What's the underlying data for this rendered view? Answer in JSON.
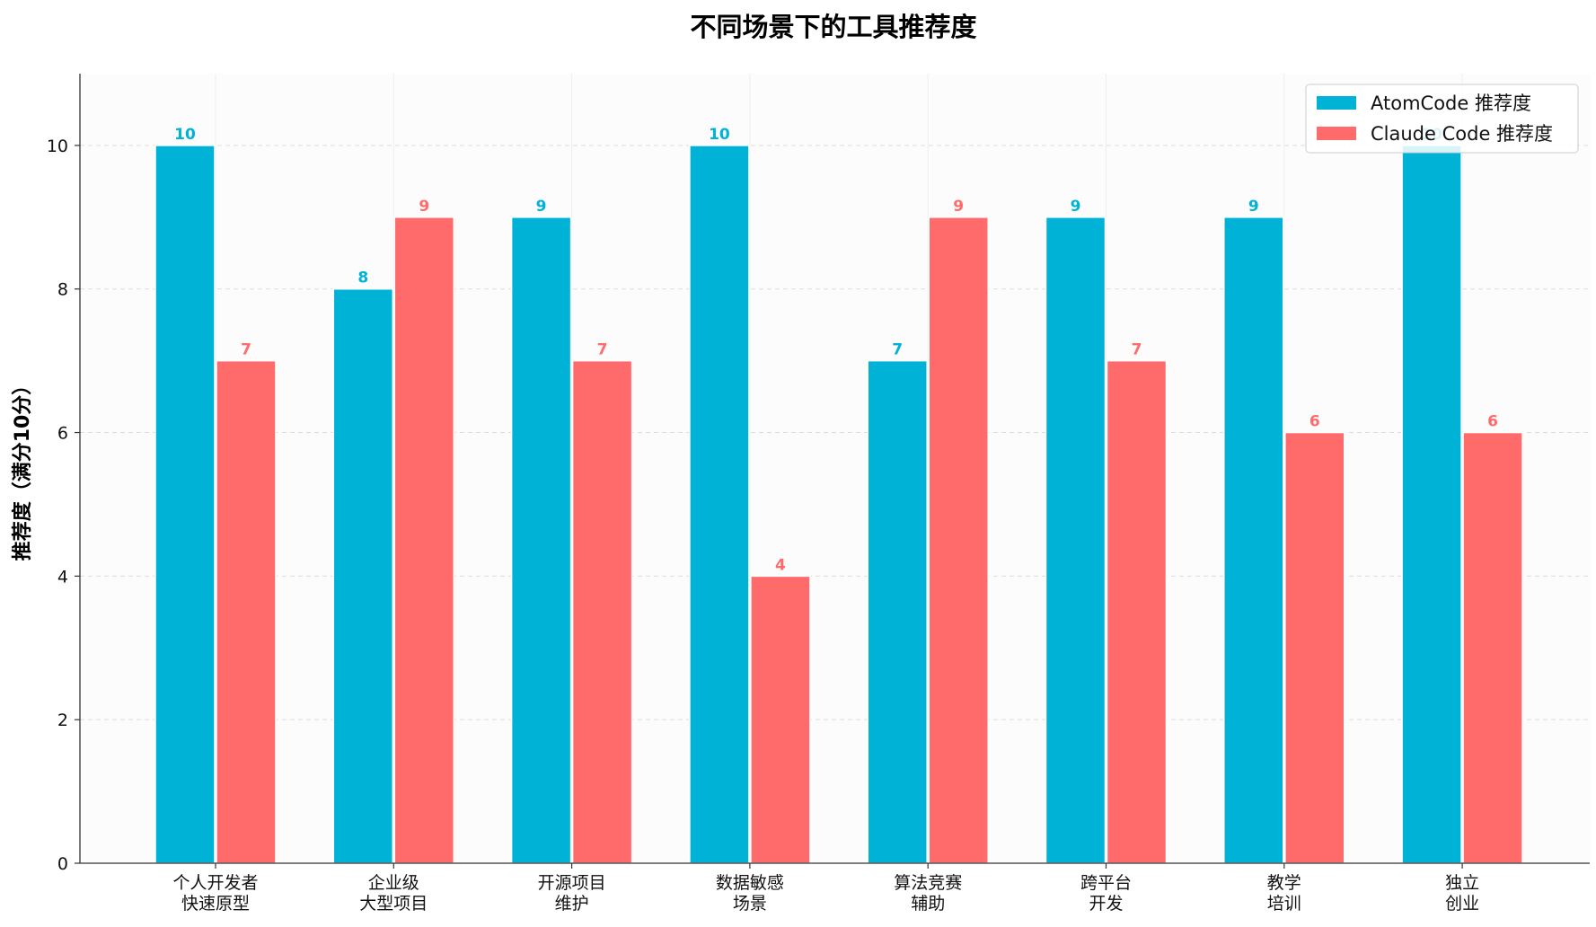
{
  "chart_data": {
    "type": "bar",
    "title": "不同场景下的工具推荐度",
    "xlabel": "",
    "ylabel": "推荐度（满分10分）",
    "categories": [
      [
        "个人开发者",
        "快速原型"
      ],
      [
        "企业级",
        "大型项目"
      ],
      [
        "开源项目",
        "维护"
      ],
      [
        "数据敏感",
        "场景"
      ],
      [
        "算法竞赛",
        "辅助"
      ],
      [
        "跨平台",
        "开发"
      ],
      [
        "教学",
        "培训"
      ],
      [
        "独立",
        "创业"
      ]
    ],
    "series": [
      {
        "name": "AtomCode 推荐度",
        "color": "#00b3d6",
        "values": [
          10,
          8,
          9,
          10,
          7,
          9,
          9,
          10
        ]
      },
      {
        "name": "Claude Code 推荐度",
        "color": "#ff6b6b",
        "values": [
          7,
          9,
          7,
          4,
          9,
          7,
          6,
          6
        ]
      }
    ],
    "ylim": [
      0,
      11
    ],
    "yticks": [
      0,
      2,
      4,
      6,
      8,
      10
    ],
    "grid": true,
    "legend_position": "top-right"
  }
}
